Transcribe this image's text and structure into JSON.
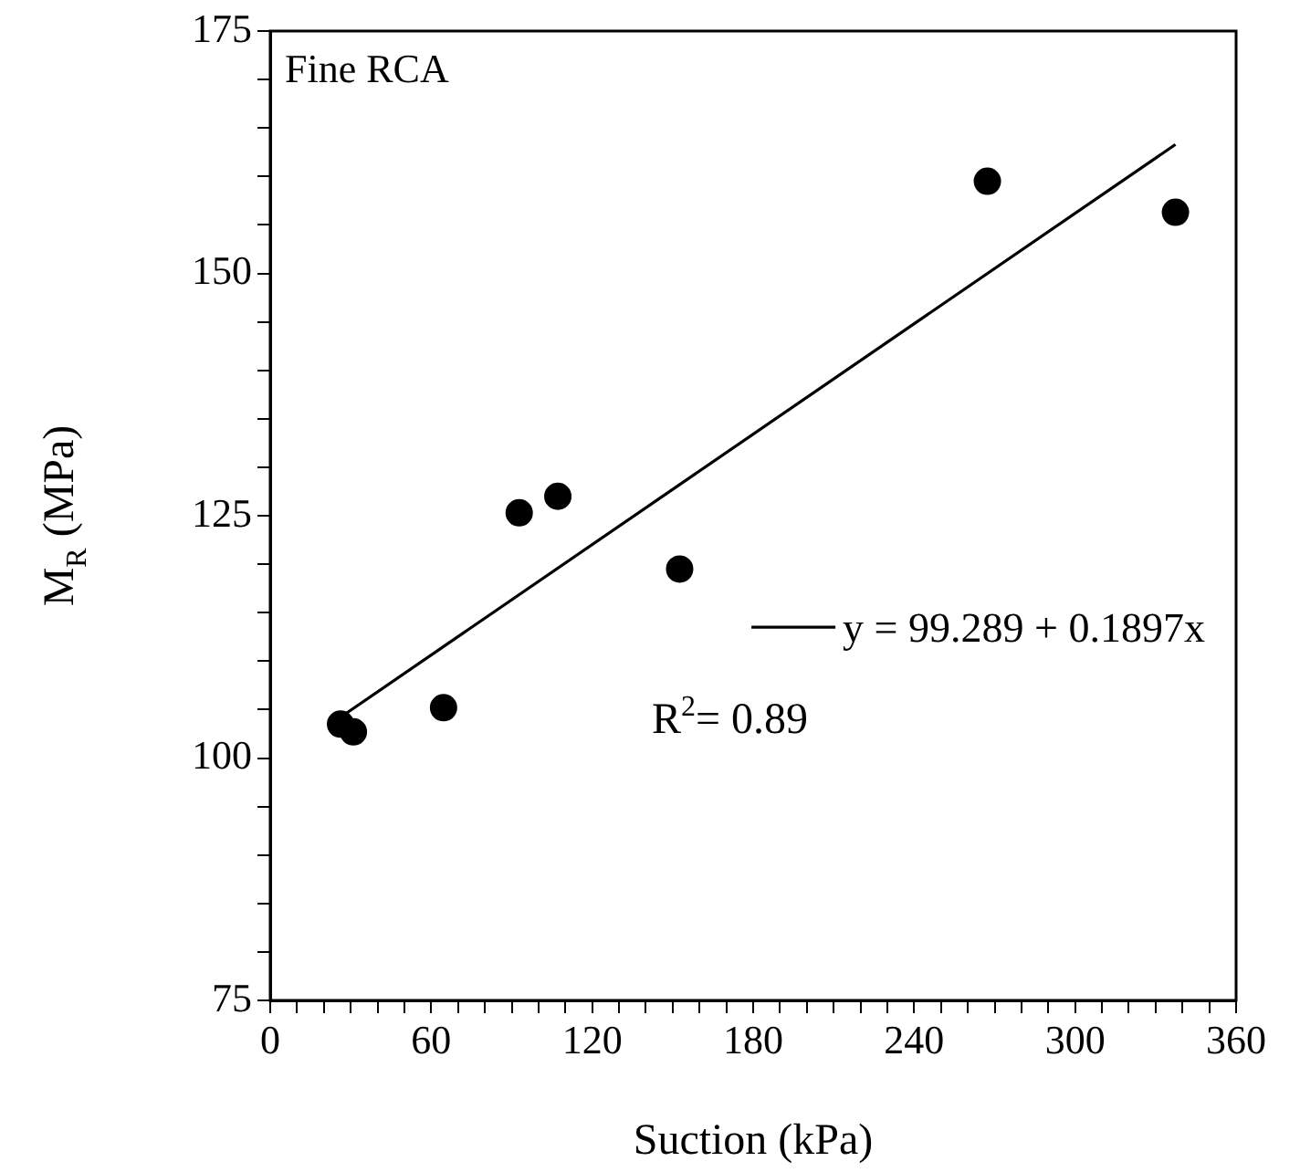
{
  "chart_data": {
    "type": "scatter",
    "title": "Fine RCA",
    "xlabel": "Suction (kPa)",
    "ylabel": "M$_{R}$ (MPa)",
    "xlim": [
      0,
      360
    ],
    "ylim": [
      75,
      175
    ],
    "xticks": [
      0,
      {
        "value": 10,
        "label": null
      },
      {
        "value": 20,
        "label": null
      },
      {
        "value": 30,
        "label": null
      },
      {
        "value": 40,
        "label": null
      },
      {
        "value": 50,
        "label": null
      },
      60,
      {
        "value": 70,
        "label": null
      },
      {
        "value": 80,
        "label": null
      },
      {
        "value": 90,
        "label": null
      },
      {
        "value": 100,
        "label": null
      },
      {
        "value": 110,
        "label": null
      },
      120,
      {
        "value": 130,
        "label": null
      },
      {
        "value": 140,
        "label": null
      },
      {
        "value": 150,
        "label": null
      },
      {
        "value": 160,
        "label": null
      },
      {
        "value": 170,
        "label": null
      },
      180,
      {
        "value": 190,
        "label": null
      },
      {
        "value": 200,
        "label": null
      },
      {
        "value": 210,
        "label": null
      },
      {
        "value": 220,
        "label": null
      },
      {
        "value": 230,
        "label": null
      },
      240,
      {
        "value": 250,
        "label": null
      },
      {
        "value": 260,
        "label": null
      },
      {
        "value": 270,
        "label": null
      },
      {
        "value": 280,
        "label": null
      },
      {
        "value": 290,
        "label": null
      },
      300,
      {
        "value": 310,
        "label": null
      },
      {
        "value": 320,
        "label": null
      },
      {
        "value": 330,
        "label": null
      },
      {
        "value": 340,
        "label": null
      },
      {
        "value": 350,
        "label": null
      },
      360
    ],
    "yticks": [
      75,
      {
        "value": 80,
        "label": null
      },
      {
        "value": 85,
        "label": null
      },
      {
        "value": 90,
        "label": null
      },
      {
        "value": 95,
        "label": null
      },
      100,
      {
        "value": 105,
        "label": null
      },
      {
        "value": 110,
        "label": null
      },
      {
        "value": 115,
        "label": null
      },
      {
        "value": 120,
        "label": null
      },
      125,
      {
        "value": 130,
        "label": null
      },
      {
        "value": 135,
        "label": null
      },
      {
        "value": 140,
        "label": null
      },
      {
        "value": 145,
        "label": null
      },
      150,
      {
        "value": 155,
        "label": null
      },
      {
        "value": 160,
        "label": null
      },
      {
        "value": 165,
        "label": null
      },
      {
        "value": 170,
        "label": null
      },
      175
    ],
    "line_style": "solid",
    "legend": "center right",
    "series": [
      {
        "color": "#000000",
        "marker": "circle",
        "x": [
          26.2,
          31.0,
          64.6,
          92.8,
          107.2,
          152.6,
          267.3,
          337.4
        ],
        "values": [
          103.5,
          102.7,
          105.2,
          125.3,
          127.0,
          119.5,
          159.5,
          156.3
        ]
      },
      {
        "type": "line",
        "marker": "none",
        "name": "y = 99.289 + 0.1897x",
        "color": "#000000",
        "x": [
          27.2,
          337.4
        ],
        "values": [
          104.4,
          163.3
        ]
      }
    ],
    "annotations": [
      "R$^{2}$= 0.89"
    ]
  }
}
